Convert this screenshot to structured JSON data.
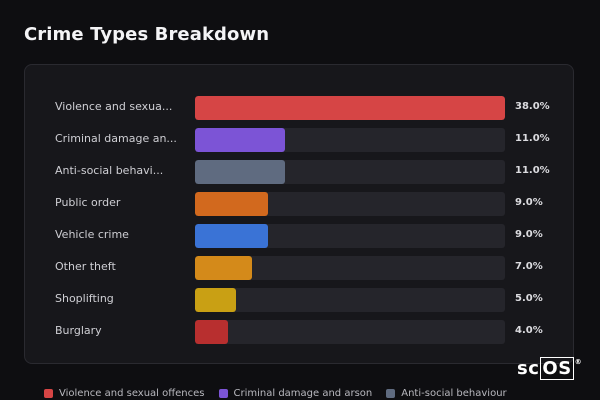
{
  "chart_data": {
    "type": "bar",
    "orientation": "horizontal",
    "title": "Crime Types Breakdown",
    "value_suffix": "%",
    "categories": [
      "Violence and sexua...",
      "Criminal damage an...",
      "Anti-social behavi...",
      "Public order",
      "Vehicle crime",
      "Other theft",
      "Shoplifting",
      "Burglary"
    ],
    "values": [
      38.0,
      11.0,
      11.0,
      9.0,
      9.0,
      7.0,
      5.0,
      4.0
    ],
    "value_labels": [
      "38.0%",
      "11.0%",
      "11.0%",
      "9.0%",
      "9.0%",
      "7.0%",
      "5.0%",
      "4.0%"
    ],
    "colors": [
      "#d64545",
      "#7c54d6",
      "#5f6b80",
      "#d2691e",
      "#3a73d6",
      "#d48a1a",
      "#c9a014",
      "#b82f2f"
    ],
    "xlim": [
      0,
      38
    ],
    "legend": {
      "placement": "bottom",
      "entries": [
        {
          "label": "Violence and sexual offences",
          "color": "#d64545"
        },
        {
          "label": "Criminal damage and arson",
          "color": "#7c54d6"
        },
        {
          "label": "Anti-social behaviour",
          "color": "#5f6b80"
        }
      ]
    }
  },
  "brand": {
    "logo_prefix": "sc",
    "logo_boxed": "OS",
    "logo_mark": "®"
  }
}
